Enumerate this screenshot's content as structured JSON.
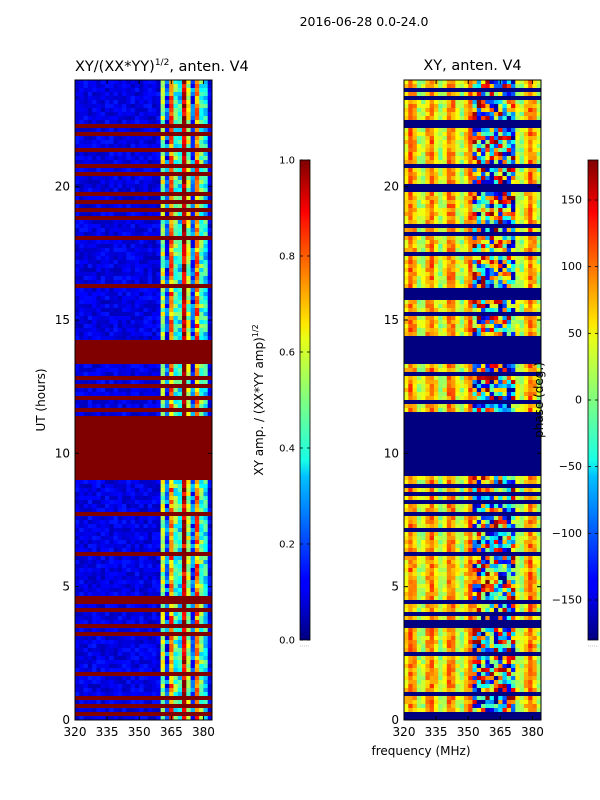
{
  "chart_data": {
    "suptitle": "2016-06-28 0.0-24.0",
    "xlabel": "frequency (MHz)",
    "ylabel": "UT (hours)",
    "panels": [
      {
        "id": "amplitude",
        "type": "heatmap",
        "title_main": "XY/(XX*YY)",
        "title_exp": "1/2",
        "title_suffix": ", anten. V4",
        "xlim": [
          320,
          384
        ],
        "xticks": [
          320,
          335,
          350,
          365,
          380
        ],
        "ylim": [
          0,
          24
        ],
        "yticks": [
          0,
          5,
          10,
          15,
          20
        ],
        "colorbar": {
          "label_main": "XY amp. / (XX*YY amp)",
          "label_exp": "1/2",
          "range": [
            0.0,
            1.0
          ],
          "ticks": [
            "0.0",
            "0.2",
            "0.4",
            "0.6",
            "0.8",
            "1.0"
          ],
          "tick_values": [
            0.0,
            0.2,
            0.4,
            0.6,
            0.8,
            1.0
          ]
        },
        "saturated_bands_hours": [
          [
            9.2,
            11.4
          ],
          [
            13.4,
            14.2
          ]
        ],
        "rfi_band_mhz": [
          361,
          381
        ],
        "flagged_value": 1.0,
        "typical_value": 0.1
      },
      {
        "id": "phase",
        "type": "heatmap",
        "title_main": "XY, anten. V4",
        "xlim": [
          320,
          384
        ],
        "xticks": [
          320,
          335,
          350,
          365,
          380
        ],
        "ylim": [
          0,
          24
        ],
        "yticks": [
          0,
          5,
          10,
          15,
          20
        ],
        "colorbar": {
          "label_main": "phase (deg.)",
          "range": [
            -180,
            180
          ],
          "ticks": [
            "150",
            "100",
            "50",
            "0",
            "−50",
            "−100",
            "−150"
          ],
          "tick_values": [
            150,
            100,
            50,
            0,
            -50,
            -100,
            -150
          ]
        },
        "flagged_bands_hours": [
          [
            9.2,
            11.4
          ],
          [
            13.4,
            14.2
          ]
        ],
        "rfi_band_mhz": [
          353,
          372
        ],
        "flagged_value": -180,
        "typical_value": 55
      }
    ]
  },
  "colors": {
    "jet_dark_blue": "#00007f",
    "jet_dark_red": "#7f0000",
    "axis": "#000000"
  }
}
